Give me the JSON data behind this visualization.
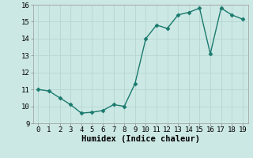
{
  "x": [
    0,
    1,
    2,
    3,
    4,
    5,
    6,
    7,
    8,
    9,
    10,
    11,
    12,
    13,
    14,
    15,
    16,
    17,
    18,
    19
  ],
  "y": [
    11.0,
    10.9,
    10.5,
    10.1,
    9.6,
    9.65,
    9.75,
    10.1,
    10.0,
    11.35,
    14.0,
    14.8,
    14.6,
    15.4,
    15.55,
    15.8,
    13.1,
    15.8,
    15.4,
    15.15
  ],
  "line_color": "#1a7a6e",
  "marker": "D",
  "marker_size": 2.5,
  "bg_color": "#cce8e4",
  "grid_color": "#b8d8d4",
  "xlabel": "Humidex (Indice chaleur)",
  "ylim": [
    9,
    16
  ],
  "xlim": [
    -0.5,
    19.5
  ],
  "yticks": [
    9,
    10,
    11,
    12,
    13,
    14,
    15,
    16
  ],
  "xticks": [
    0,
    1,
    2,
    3,
    4,
    5,
    6,
    7,
    8,
    9,
    10,
    11,
    12,
    13,
    14,
    15,
    16,
    17,
    18,
    19
  ],
  "xlabel_fontsize": 7.5,
  "tick_fontsize": 6.5,
  "line_width": 1.0
}
